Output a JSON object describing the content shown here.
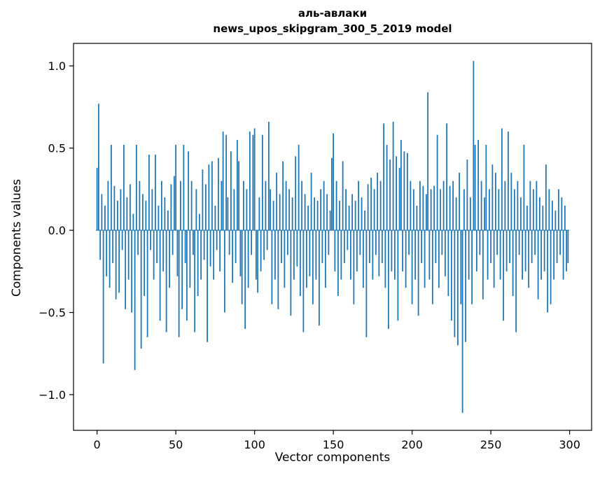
{
  "figure": {
    "title_line1": "аль-авлаки",
    "title_line2": "news_upos_skipgram_300_5_2019 model",
    "xlabel": "Vector components",
    "ylabel": "Components values"
  },
  "chart_data": {
    "type": "bar",
    "title": "аль-авлаки\nnews_upos_skipgram_300_5_2019 model",
    "xlabel": "Vector components",
    "ylabel": "Components values",
    "bar_color": "#1f77b4",
    "axis_color": "#000000",
    "grid": false,
    "legend": null,
    "x_start": 0,
    "n_components": 300,
    "xlim": [
      -14.95,
      313.95
    ],
    "ylim": [
      -1.217,
      1.137
    ],
    "x_ticks": [
      0,
      50,
      100,
      150,
      200,
      250,
      300
    ],
    "y_ticks": [
      -1.0,
      -0.5,
      0.0,
      0.5,
      1.0
    ],
    "values": [
      0.38,
      0.77,
      -0.18,
      0.22,
      -0.81,
      0.15,
      -0.28,
      0.3,
      -0.35,
      0.52,
      -0.2,
      0.27,
      -0.42,
      0.18,
      -0.38,
      0.25,
      -0.12,
      0.52,
      -0.48,
      0.2,
      -0.3,
      0.28,
      -0.5,
      0.1,
      -0.85,
      0.52,
      -0.15,
      0.3,
      -0.72,
      0.22,
      -0.4,
      0.18,
      -0.65,
      0.46,
      -0.12,
      0.25,
      -0.3,
      0.46,
      -0.2,
      0.15,
      -0.55,
      0.3,
      -0.25,
      0.2,
      -0.62,
      0.12,
      -0.35,
      0.28,
      -0.15,
      0.33,
      0.52,
      -0.28,
      -0.65,
      0.3,
      -0.48,
      0.52,
      -0.2,
      -0.55,
      0.48,
      -0.35,
      0.3,
      -0.15,
      -0.62,
      0.25,
      -0.4,
      0.1,
      -0.3,
      0.37,
      -0.18,
      0.28,
      -0.68,
      0.4,
      -0.22,
      0.42,
      -0.3,
      0.15,
      -0.12,
      0.44,
      -0.25,
      0.3,
      0.6,
      -0.5,
      0.58,
      0.2,
      -0.15,
      0.48,
      -0.32,
      0.25,
      -0.2,
      0.55,
      0.42,
      -0.28,
      -0.45,
      0.3,
      -0.6,
      0.25,
      -0.35,
      0.6,
      -0.15,
      0.58,
      0.62,
      -0.3,
      -0.38,
      0.2,
      -0.25,
      0.58,
      -0.18,
      0.3,
      -0.12,
      0.66,
      0.25,
      -0.45,
      0.18,
      -0.3,
      0.35,
      -0.48,
      0.22,
      -0.2,
      0.42,
      -0.35,
      0.3,
      -0.15,
      0.25,
      -0.52,
      0.2,
      -0.3,
      0.45,
      -0.22,
      0.52,
      -0.4,
      0.3,
      -0.62,
      0.22,
      -0.35,
      0.15,
      -0.28,
      0.35,
      -0.45,
      0.2,
      -0.3,
      0.18,
      -0.58,
      0.25,
      -0.2,
      0.3,
      -0.35,
      0.22,
      -0.15,
      0.12,
      0.44,
      0.59,
      -0.25,
      0.3,
      -0.4,
      0.18,
      -0.3,
      0.42,
      -0.2,
      0.25,
      -0.12,
      0.15,
      -0.3,
      0.22,
      -0.45,
      0.18,
      -0.25,
      0.3,
      -0.15,
      0.2,
      -0.35,
      0.12,
      -0.65,
      0.28,
      -0.2,
      0.32,
      -0.3,
      0.25,
      -0.15,
      0.35,
      -0.28,
      0.3,
      -0.2,
      0.65,
      -0.35,
      0.52,
      -0.6,
      0.43,
      -0.25,
      0.66,
      -0.3,
      0.45,
      -0.55,
      0.38,
      0.55,
      -0.25,
      0.48,
      -0.35,
      0.47,
      -0.15,
      0.3,
      -0.45,
      0.25,
      -0.3,
      0.15,
      -0.52,
      0.3,
      -0.2,
      0.27,
      -0.35,
      0.22,
      0.84,
      -0.3,
      0.25,
      -0.45,
      0.27,
      -0.2,
      0.58,
      -0.35,
      0.25,
      -0.15,
      0.3,
      -0.28,
      0.65,
      -0.4,
      0.27,
      -0.55,
      0.3,
      -0.65,
      0.2,
      -0.7,
      0.35,
      -0.45,
      -1.11,
      0.25,
      -0.68,
      0.43,
      -0.3,
      0.2,
      -0.45,
      1.03,
      0.52,
      -0.25,
      0.55,
      -0.15,
      0.3,
      -0.42,
      0.2,
      0.52,
      -0.3,
      0.25,
      -0.2,
      0.4,
      -0.35,
      0.35,
      -0.15,
      0.25,
      -0.3,
      0.62,
      -0.55,
      0.3,
      -0.25,
      0.6,
      -0.2,
      0.35,
      -0.4,
      0.25,
      -0.62,
      0.3,
      -0.15,
      0.2,
      -0.3,
      0.52,
      -0.25,
      0.15,
      -0.35,
      0.3,
      -0.2,
      0.25,
      -0.15,
      0.3,
      -0.42,
      0.2,
      -0.3,
      0.15,
      -0.25,
      0.4,
      -0.5,
      0.25,
      -0.45,
      0.18,
      -0.3,
      0.12,
      -0.2,
      0.25,
      -0.15,
      0.2,
      -0.3,
      0.15,
      -0.25,
      -0.2
    ]
  }
}
